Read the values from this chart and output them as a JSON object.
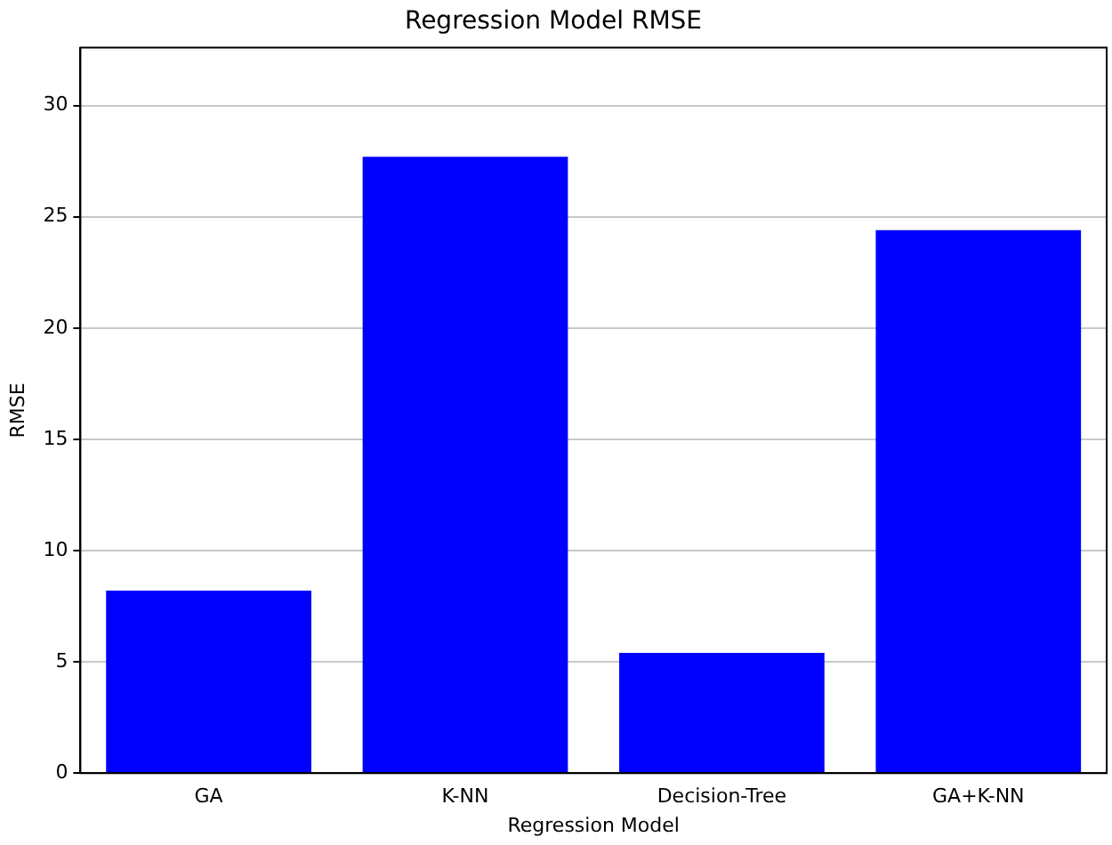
{
  "chart_data": {
    "type": "bar",
    "title": "Regression Model RMSE",
    "xlabel": "Regression Model",
    "ylabel": "RMSE",
    "categories": [
      "GA",
      "K-NN",
      "Decision-Tree",
      "GA+K-NN"
    ],
    "values": [
      8.2,
      27.7,
      5.4,
      24.4
    ],
    "color": "#0000ff",
    "ylim": [
      0,
      32.6
    ],
    "yticks": [
      0,
      5,
      10,
      15,
      20,
      25,
      30
    ],
    "grid": "y",
    "legend": false
  }
}
